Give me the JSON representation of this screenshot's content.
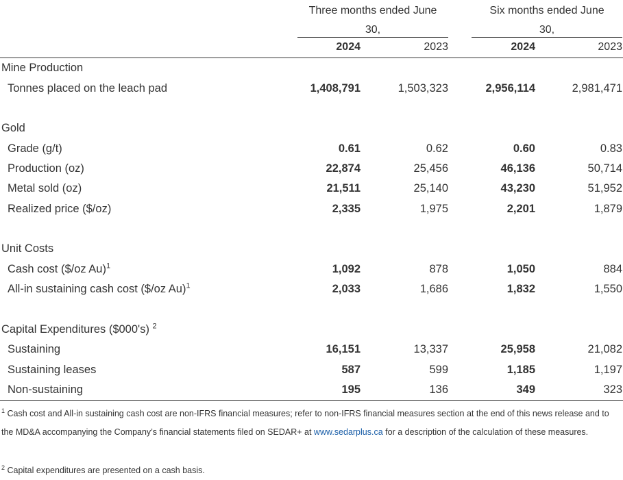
{
  "header": {
    "group1_line1": "Three months ended June",
    "group1_line2": "30,",
    "group2_line1": "Six months ended June",
    "group2_line2": "30,",
    "years": [
      "2024",
      "2023",
      "2024",
      "2023"
    ]
  },
  "sections": {
    "mine": {
      "title": "Mine Production",
      "tonnes": {
        "label": "Tonnes placed on the leach pad",
        "v": [
          "1,408,791",
          "1,503,323",
          "2,956,114",
          "2,981,471"
        ]
      }
    },
    "gold": {
      "title": "Gold",
      "grade": {
        "label": "Grade (g/t)",
        "v": [
          "0.61",
          "0.62",
          "0.60",
          "0.83"
        ]
      },
      "production": {
        "label": "Production (oz)",
        "v": [
          "22,874",
          "25,456",
          "46,136",
          "50,714"
        ]
      },
      "sold": {
        "label": "Metal sold (oz)",
        "v": [
          "21,511",
          "25,140",
          "43,230",
          "51,952"
        ]
      },
      "price": {
        "label": "Realized price ($/oz)",
        "v": [
          "2,335",
          "1,975",
          "2,201",
          "1,879"
        ]
      }
    },
    "unit": {
      "title": "Unit Costs",
      "cash": {
        "label": "Cash cost ($/oz Au)",
        "sup": "1",
        "v": [
          "1,092",
          "878",
          "1,050",
          "884"
        ]
      },
      "aisc": {
        "label": "All-in sustaining cash cost ($/oz Au)",
        "sup": "1",
        "v": [
          "2,033",
          "1,686",
          "1,832",
          "1,550"
        ]
      }
    },
    "capex": {
      "title": "Capital Expenditures ($000's)",
      "title_sup": "2",
      "sustaining": {
        "label": "Sustaining",
        "v": [
          "16,151",
          "13,337",
          "25,958",
          "21,082"
        ]
      },
      "leases": {
        "label": "Sustaining leases",
        "v": [
          "587",
          "599",
          "1,185",
          "1,197"
        ]
      },
      "non": {
        "label": "Non-sustaining",
        "v": [
          "195",
          "136",
          "349",
          "323"
        ]
      }
    }
  },
  "footnotes": {
    "f1_mark": "1",
    "f1_text_a": "Cash cost and All-in sustaining cash cost are non-IFRS financial measures; refer to non-IFRS financial measures section at the end of this news release and to the MD&A accompanying the Company’s financial statements filed on SEDAR+ at",
    "f1_link": "www.sedarplus.ca",
    "f1_text_b": "for a description of the calculation of these measures.",
    "f2_mark": "2",
    "f2_text": "Capital expenditures are presented on a cash basis."
  }
}
